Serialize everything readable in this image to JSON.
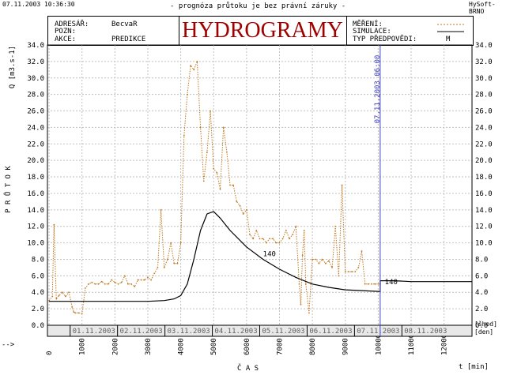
{
  "topbar": {
    "timestamp": "07.11.2003 10:36:30",
    "disclaimer": "- prognóza průtoku je bez právní záruky -",
    "brand": "HySoft-BRNO"
  },
  "header": {
    "rows": [
      {
        "label": "ADRESÁŘ:",
        "value": "BecvaR"
      },
      {
        "label": "POZN:",
        "value": ""
      },
      {
        "label": "AKCE:",
        "value": "PREDIKCE"
      }
    ],
    "title": "HYDROGRAMY",
    "legend": [
      {
        "label": "MĚŘENÍ:"
      },
      {
        "label": "SIMULACE:"
      },
      {
        "label": "TYP PŘEDPOVĚDI:",
        "value": "M"
      }
    ]
  },
  "colors": {
    "measured": "#c07820",
    "simulated": "#000000",
    "now_line": "#4040c0",
    "title": "#a00000"
  },
  "icons": [
    "arrow-icon"
  ],
  "chart_data": {
    "type": "line",
    "ylabel": "Q [m3.s-1]",
    "ylabel_word": "P R Ů T O K",
    "xlabel": "Č A S",
    "xunit": "t [min]",
    "ylim": [
      0,
      34
    ],
    "xlim": [
      -50,
      12850
    ],
    "yticks": [
      "0.0",
      "2.0",
      "4.0",
      "6.0",
      "8.0",
      "10.0",
      "12.0",
      "14.0",
      "16.0",
      "18.0",
      "20.0",
      "22.0",
      "24.0",
      "26.0",
      "28.0",
      "30.0",
      "32.0",
      "34.0"
    ],
    "xticks": [
      "0",
      "1000",
      "2000",
      "3000",
      "4000",
      "5000",
      "6000",
      "7000",
      "8000",
      "9000",
      "10000",
      "11000",
      "12000"
    ],
    "date_labels": [
      "01.11.2003",
      "02.11.2003",
      "03.11.2003",
      "04.11.2003",
      "05.11.2003",
      "06.11.2003",
      "07.11.2003",
      "08.11.2003"
    ],
    "date_band_right": [
      "[šhod]",
      "[den]"
    ],
    "now_marker": {
      "x": 10060,
      "label": "07.11.2003 06:00"
    },
    "grid": true,
    "annotations": [
      {
        "text": "140",
        "x": 6500,
        "y": 8.4
      },
      {
        "text": "140",
        "x": 10200,
        "y": 5.0
      }
    ],
    "series": [
      {
        "name": "MĚŘENÍ",
        "style": "dashed",
        "x": [
          0,
          100,
          150,
          220,
          300,
          400,
          500,
          600,
          700,
          750,
          800,
          900,
          1000,
          1100,
          1200,
          1300,
          1400,
          1500,
          1600,
          1700,
          1800,
          1900,
          2000,
          2100,
          2200,
          2300,
          2400,
          2500,
          2600,
          2700,
          2800,
          2900,
          3000,
          3100,
          3200,
          3300,
          3400,
          3500,
          3600,
          3700,
          3800,
          3900,
          4000,
          4100,
          4200,
          4300,
          4400,
          4500,
          4600,
          4700,
          4800,
          4900,
          5000,
          5100,
          5200,
          5300,
          5400,
          5500,
          5600,
          5700,
          5800,
          5900,
          6000,
          6100,
          6200,
          6300,
          6400,
          6500,
          6600,
          6700,
          6800,
          6900,
          7000,
          7100,
          7200,
          7300,
          7400,
          7500,
          7600,
          7650,
          7700,
          7750,
          7800,
          7900,
          8000,
          8100,
          8200,
          8300,
          8400,
          8500,
          8600,
          8700,
          8800,
          8900,
          9000,
          9100,
          9200,
          9300,
          9400,
          9500,
          9600,
          9700,
          9800,
          9900,
          10000,
          10060
        ],
        "y": [
          3.0,
          3.5,
          12.2,
          3.2,
          3.6,
          4.0,
          3.5,
          4.0,
          2.2,
          1.6,
          1.5,
          1.5,
          1.4,
          4.5,
          5.0,
          5.2,
          5.0,
          5.0,
          5.3,
          5.0,
          5.0,
          5.5,
          5.2,
          5.0,
          5.2,
          6.0,
          5.0,
          5.0,
          4.7,
          5.5,
          5.5,
          5.5,
          5.8,
          5.5,
          6.3,
          7.0,
          14.0,
          7.0,
          8.0,
          10.0,
          7.5,
          7.5,
          10.0,
          23.0,
          28.0,
          31.5,
          31.0,
          32.0,
          24.0,
          17.5,
          21.0,
          26.0,
          19.0,
          18.5,
          16.5,
          24.0,
          21.0,
          17.0,
          17.0,
          15.0,
          14.5,
          13.5,
          14.0,
          11.0,
          10.5,
          11.5,
          10.5,
          10.5,
          10.0,
          10.5,
          10.5,
          10.0,
          10.0,
          10.5,
          11.5,
          10.5,
          11.0,
          12.0,
          5.0,
          2.5,
          8.5,
          11.5,
          5.0,
          1.5,
          8.0,
          8.0,
          7.5,
          8.0,
          7.5,
          7.8,
          7.0,
          12.0,
          6.0,
          17.0,
          6.5,
          6.5,
          6.5,
          6.5,
          7.0,
          9.0,
          5.0,
          5.0,
          5.0,
          5.0,
          5.0,
          5.0
        ]
      },
      {
        "name": "SIMULACE",
        "style": "solid",
        "x": [
          0,
          500,
          1000,
          1500,
          2000,
          2500,
          3000,
          3500,
          3800,
          4000,
          4200,
          4400,
          4600,
          4800,
          5000,
          5200,
          5500,
          6000,
          6500,
          7000,
          7500,
          8000,
          8500,
          9000,
          9500,
          10060,
          10060,
          10500,
          11000,
          11500,
          12000,
          12850
        ],
        "y": [
          2.9,
          2.9,
          2.9,
          2.9,
          2.9,
          2.9,
          2.9,
          3.0,
          3.2,
          3.6,
          5.0,
          8.0,
          11.5,
          13.5,
          13.8,
          13.0,
          11.5,
          9.5,
          8.0,
          6.8,
          5.8,
          5.0,
          4.6,
          4.3,
          4.2,
          4.1,
          5.4,
          5.4,
          5.3,
          5.3,
          5.3,
          5.3
        ]
      }
    ]
  }
}
